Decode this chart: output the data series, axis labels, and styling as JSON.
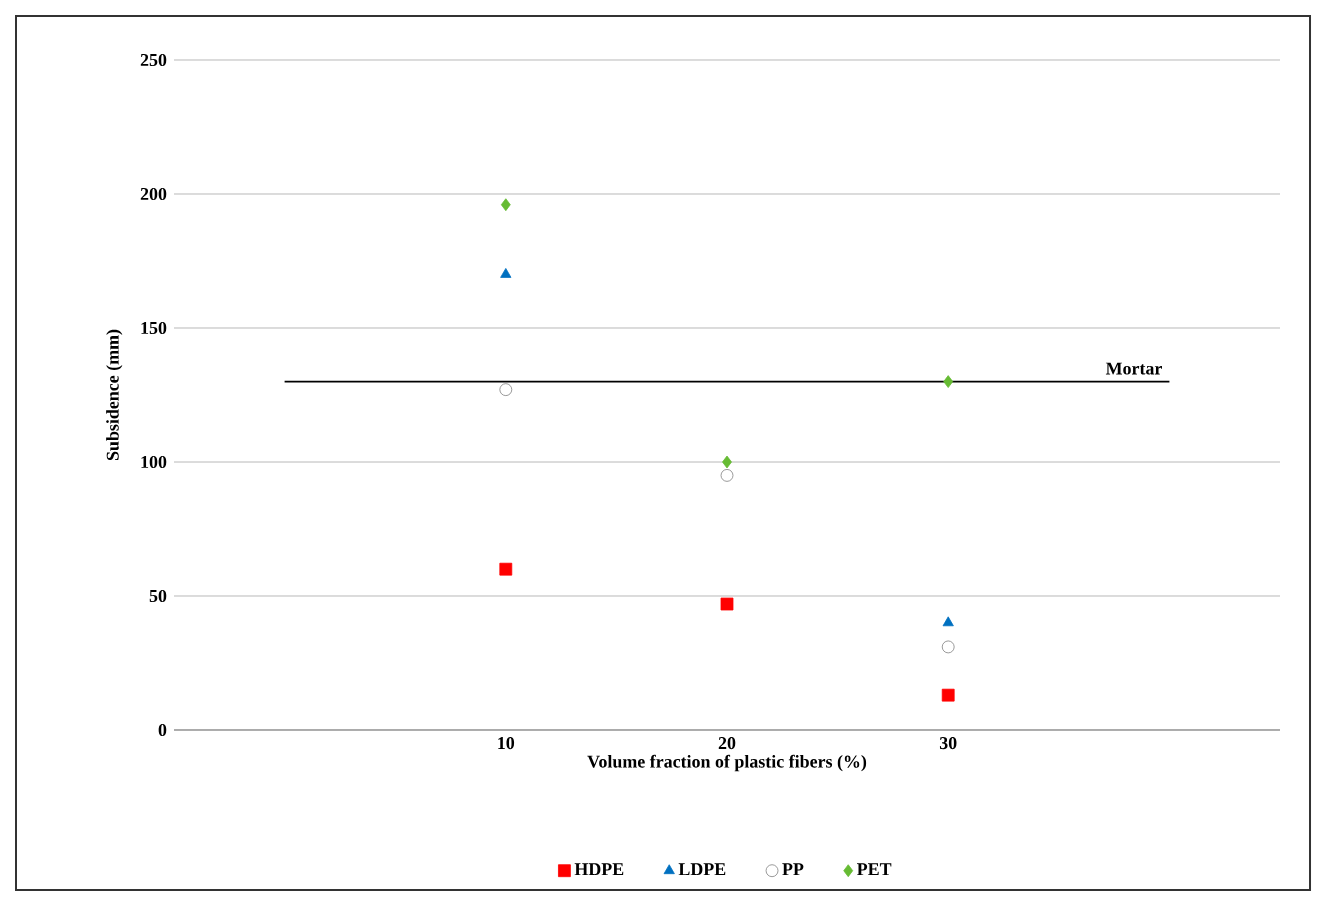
{
  "chart_data": {
    "type": "scatter",
    "xlabel": "Volume fraction of plastic fibers (%)",
    "ylabel": "Subsidence (mm)",
    "x": [
      10,
      20,
      30
    ],
    "xlim": [
      -5,
      45
    ],
    "xticks": [
      10,
      20,
      30
    ],
    "ylim": [
      0,
      250
    ],
    "yticks": [
      0,
      50,
      100,
      150,
      200,
      250
    ],
    "grid": "y",
    "legend": "bottom",
    "series": [
      {
        "name": "HDPE",
        "color": "#ff0000",
        "marker": "square",
        "values": [
          60,
          47,
          13
        ]
      },
      {
        "name": "LDPE",
        "color": "#0070c0",
        "marker": "triangle",
        "values": [
          170,
          null,
          40
        ]
      },
      {
        "name": "PP",
        "color": "#808080",
        "marker": "circle",
        "values": [
          127,
          95,
          31
        ]
      },
      {
        "name": "PET",
        "color": "#66bb33",
        "marker": "diamond",
        "values": [
          196,
          100,
          130
        ]
      },
      {
        "name": "Mortar",
        "type": "line",
        "color": "#000000",
        "marker": "none",
        "x": [
          0,
          40
        ],
        "values": [
          130,
          130
        ]
      }
    ]
  }
}
